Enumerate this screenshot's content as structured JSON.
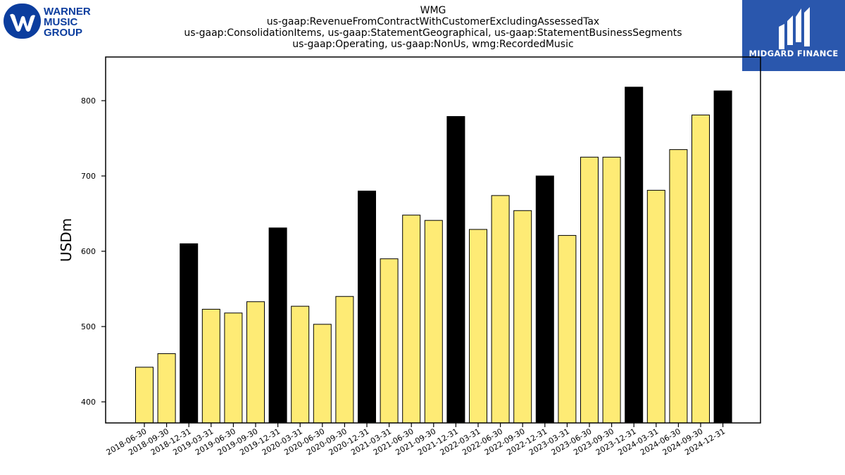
{
  "chart_data": {
    "type": "bar",
    "title": "WMG",
    "subtitle_lines": [
      "us-gaap:RevenueFromContractWithCustomerExcludingAssessedTax",
      "us-gaap:ConsolidationItems, us-gaap:StatementGeographical, us-gaap:StatementBusinessSegments",
      "us-gaap:Operating, us-gaap:NonUs, wmg:RecordedMusic"
    ],
    "ylabel": "USDm",
    "xlabel": "",
    "ylim": [
      372,
      858
    ],
    "yticks": [
      400,
      500,
      600,
      700,
      800
    ],
    "grid": false,
    "categories": [
      "2018-06-30",
      "2018-09-30",
      "2018-12-31",
      "2019-03-31",
      "2019-06-30",
      "2019-09-30",
      "2019-12-31",
      "2020-03-31",
      "2020-06-30",
      "2020-09-30",
      "2020-12-31",
      "2021-03-31",
      "2021-06-30",
      "2021-09-30",
      "2021-12-31",
      "2022-03-31",
      "2022-06-30",
      "2022-09-30",
      "2022-12-31",
      "2023-03-31",
      "2023-06-30",
      "2023-09-30",
      "2023-12-31",
      "2024-03-31",
      "2024-06-30",
      "2024-09-30",
      "2024-12-31"
    ],
    "values": [
      446,
      464,
      610,
      523,
      518,
      533,
      631,
      527,
      503,
      540,
      680,
      590,
      648,
      641,
      779,
      629,
      674,
      654,
      700,
      621,
      725,
      725,
      818,
      681,
      735,
      781,
      813
    ],
    "highlight_period": "12-31",
    "colors": {
      "quarter": "#feeb75",
      "year_end": "#000000",
      "edge": "#000000"
    }
  },
  "logos": {
    "left": {
      "lines": [
        "WARNER",
        "MUSIC",
        "GROUP"
      ],
      "color": "#0b3d9e"
    },
    "right": {
      "text": "MIDGARD FINANCE",
      "color": "#2a57ad"
    }
  }
}
